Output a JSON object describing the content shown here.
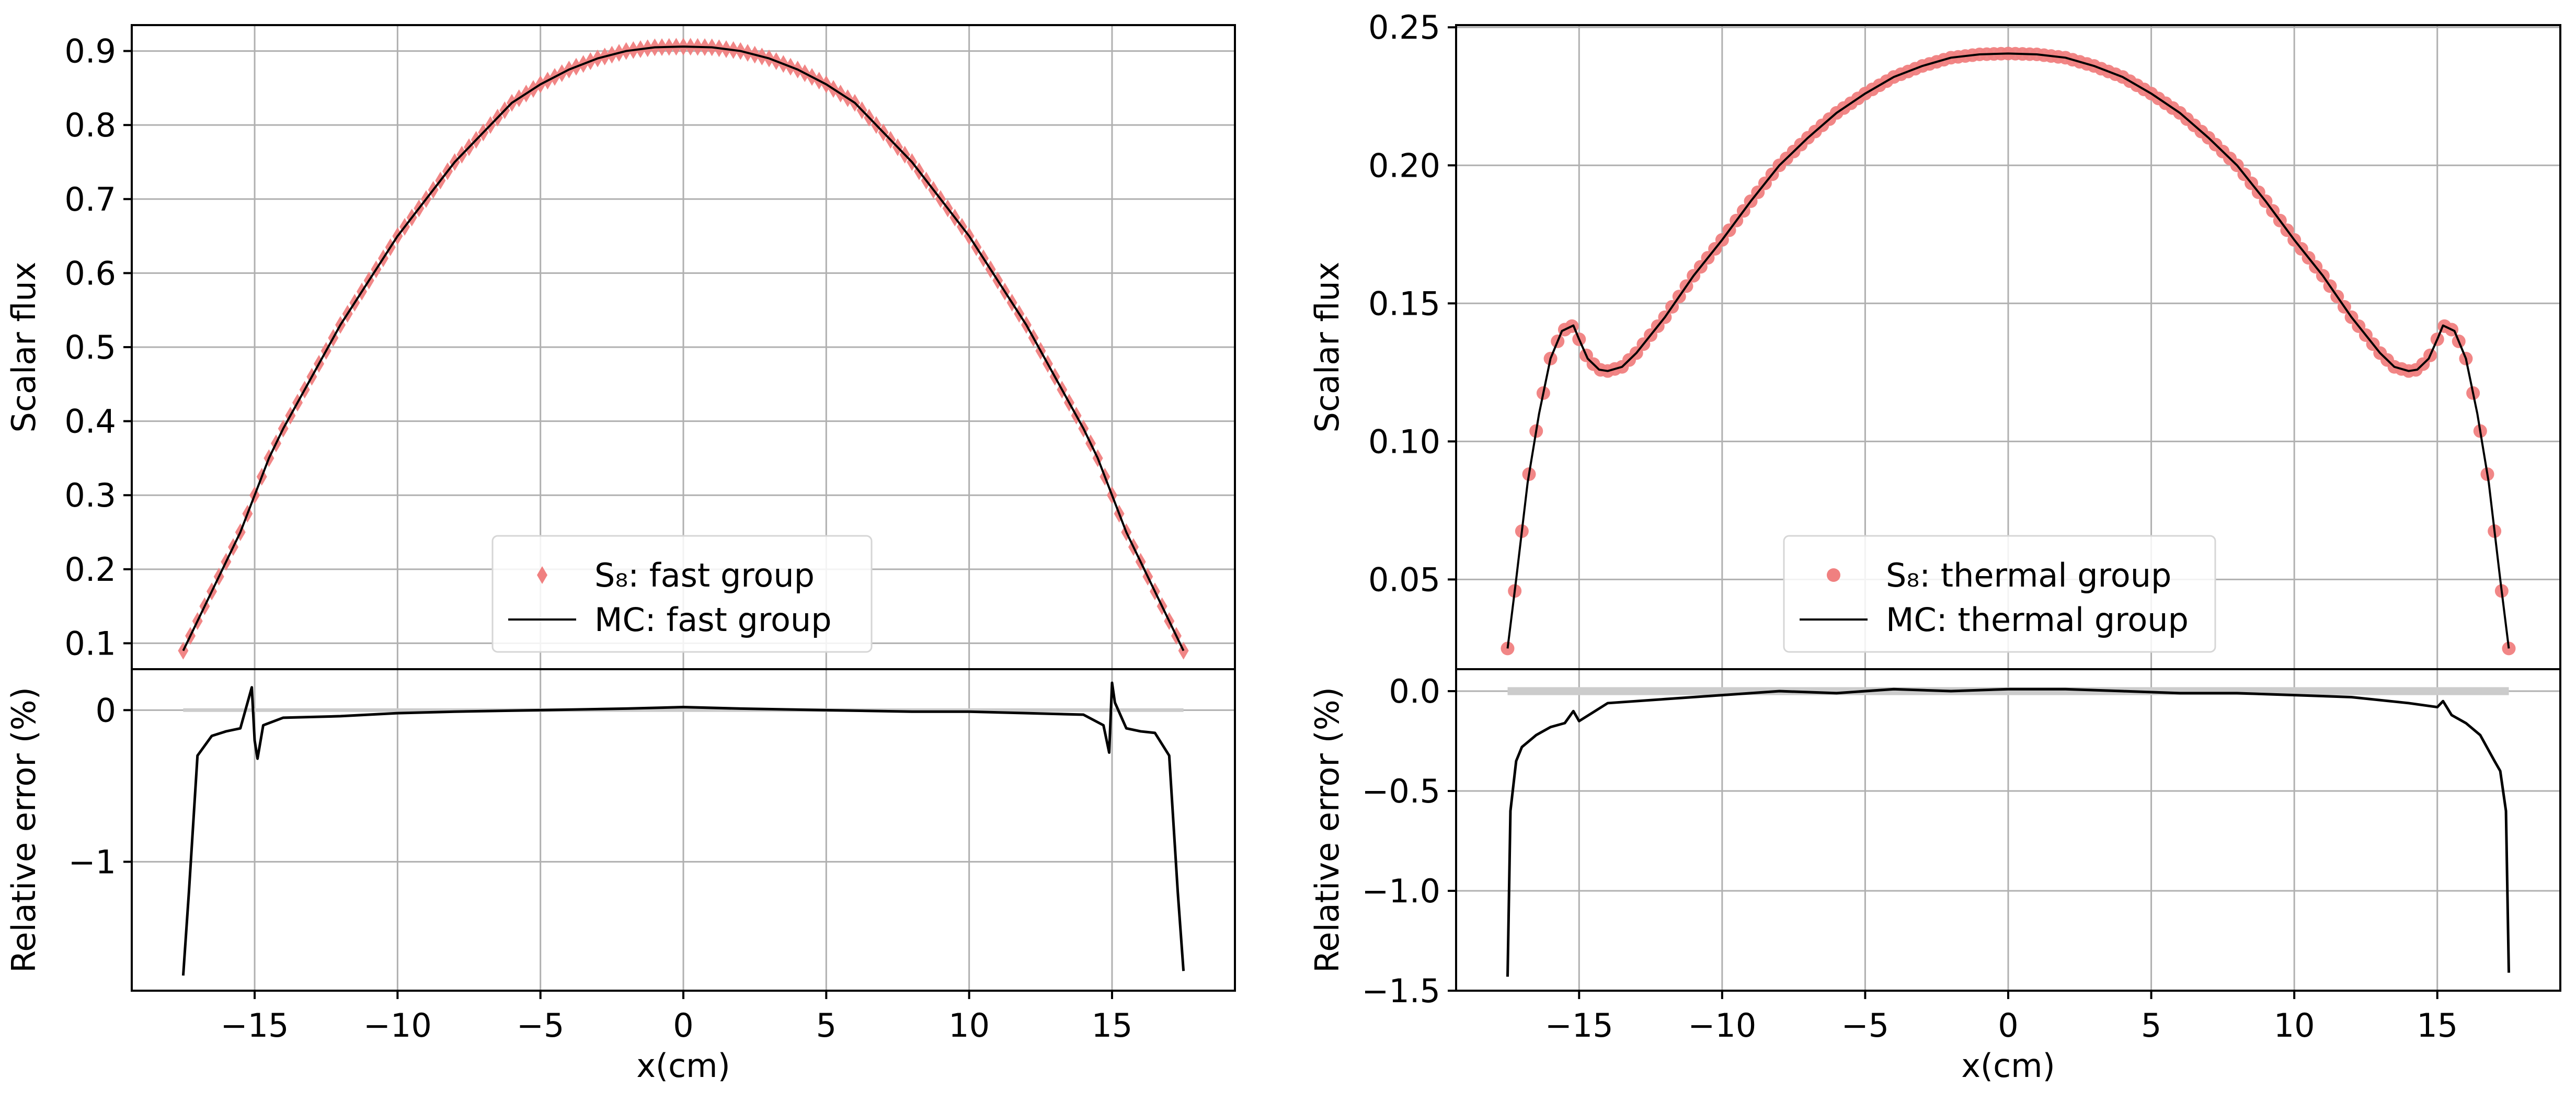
{
  "figure": {
    "left_panel": {
      "top": {
        "ylabel": "Scalar flux",
        "ylim": [
          0.065,
          0.935
        ],
        "yticks": [
          0.1,
          0.2,
          0.3,
          0.4,
          0.5,
          0.6,
          0.7,
          0.8,
          0.9
        ],
        "ytick_labels": [
          "0.1",
          "0.2",
          "0.3",
          "0.4",
          "0.5",
          "0.6",
          "0.7",
          "0.8",
          "0.9"
        ],
        "legend": [
          "S₈: fast group",
          "MC: fast group"
        ]
      },
      "bottom": {
        "ylabel": "Relative error (%)",
        "ylim": [
          -1.85,
          0.27
        ],
        "yticks": [
          0,
          -1
        ],
        "ytick_labels": [
          "0",
          "−1"
        ]
      },
      "xlabel": "x(cm)"
    },
    "right_panel": {
      "top": {
        "ylabel": "Scalar flux",
        "ylim": [
          0.0175,
          0.2508
        ],
        "yticks": [
          0.05,
          0.1,
          0.15,
          0.2,
          0.25
        ],
        "ytick_labels": [
          "0.05",
          "0.10",
          "0.15",
          "0.20",
          "0.25"
        ],
        "legend": [
          "S₈: thermal group",
          "MC: thermal group"
        ]
      },
      "bottom": {
        "ylabel": "Relative error (%)",
        "ylim": [
          -1.5,
          0.11
        ],
        "yticks": [
          0,
          -0.5,
          -1.0,
          -1.5
        ],
        "ytick_labels": [
          "0.0",
          "−0.5",
          "−1.0",
          "−1.5"
        ]
      },
      "xlabel": "x(cm)"
    },
    "xlim": [
      -19.3,
      19.3
    ],
    "xticks": [
      -15,
      -10,
      -5,
      0,
      5,
      10,
      15
    ],
    "xtick_labels": [
      "−15",
      "−10",
      "−5",
      "0",
      "5",
      "10",
      "15"
    ],
    "grid": true,
    "legend_position": "lower center",
    "colors": {
      "s8_marker": "#f08080",
      "mc_line": "#000000",
      "grid": "#b0b0b0",
      "zero_band": "#cccccc"
    }
  },
  "chart_data": [
    {
      "type": "line",
      "title": "",
      "xlabel": "",
      "ylabel": "Scalar flux",
      "xlim": [
        -19.3,
        19.3
      ],
      "ylim": [
        0.065,
        0.935
      ],
      "x": [
        -17.5,
        -17.0,
        -16.5,
        -16.0,
        -15.5,
        -15.0,
        -14.5,
        -14.0,
        -13.0,
        -12.0,
        -11.0,
        -10.0,
        -9.0,
        -8.0,
        -7.0,
        -6.0,
        -5.0,
        -4.0,
        -3.0,
        -2.0,
        -1.0,
        0.0,
        1.0,
        2.0,
        3.0,
        4.0,
        5.0,
        6.0,
        7.0,
        8.0,
        9.0,
        10.0,
        11.0,
        12.0,
        13.0,
        14.0,
        14.5,
        15.0,
        15.5,
        16.0,
        16.5,
        17.0,
        17.5
      ],
      "series": [
        {
          "name": "S₈: fast group",
          "marker": "diamond",
          "values": [
            0.09,
            0.13,
            0.17,
            0.21,
            0.25,
            0.3,
            0.35,
            0.39,
            0.46,
            0.53,
            0.59,
            0.65,
            0.7,
            0.75,
            0.79,
            0.83,
            0.855,
            0.875,
            0.89,
            0.9,
            0.905,
            0.906,
            0.905,
            0.9,
            0.89,
            0.875,
            0.855,
            0.83,
            0.79,
            0.75,
            0.7,
            0.65,
            0.59,
            0.53,
            0.46,
            0.39,
            0.35,
            0.3,
            0.25,
            0.21,
            0.17,
            0.13,
            0.09
          ]
        },
        {
          "name": "MC: fast group",
          "marker": "none",
          "values": [
            0.09,
            0.13,
            0.17,
            0.21,
            0.25,
            0.3,
            0.35,
            0.39,
            0.46,
            0.53,
            0.59,
            0.65,
            0.7,
            0.75,
            0.79,
            0.83,
            0.855,
            0.875,
            0.89,
            0.9,
            0.905,
            0.906,
            0.905,
            0.9,
            0.89,
            0.875,
            0.855,
            0.83,
            0.79,
            0.75,
            0.7,
            0.65,
            0.59,
            0.53,
            0.46,
            0.39,
            0.35,
            0.3,
            0.25,
            0.21,
            0.17,
            0.13,
            0.09
          ]
        }
      ]
    },
    {
      "type": "line",
      "title": "",
      "xlabel": "x(cm)",
      "ylabel": "Relative error (%)",
      "xlim": [
        -19.3,
        19.3
      ],
      "ylim": [
        -1.85,
        0.27
      ],
      "x": [
        -17.5,
        -17.3,
        -17.0,
        -16.5,
        -16.0,
        -15.5,
        -15.1,
        -15.0,
        -14.9,
        -14.7,
        -14.0,
        -12.0,
        -10.0,
        -8.0,
        -5.0,
        -2.0,
        0.0,
        2.0,
        5.0,
        8.0,
        10.0,
        12.0,
        14.0,
        14.7,
        14.9,
        15.0,
        15.1,
        15.5,
        16.0,
        16.5,
        17.0,
        17.3,
        17.5
      ],
      "series": [
        {
          "name": "",
          "values": [
            -1.75,
            -1.2,
            -0.3,
            -0.17,
            -0.14,
            -0.12,
            0.15,
            -0.2,
            -0.32,
            -0.1,
            -0.05,
            -0.04,
            -0.02,
            -0.01,
            0.0,
            0.01,
            0.02,
            0.01,
            0.0,
            -0.01,
            -0.01,
            -0.02,
            -0.03,
            -0.1,
            -0.28,
            0.18,
            0.05,
            -0.12,
            -0.14,
            -0.15,
            -0.3,
            -1.2,
            -1.72
          ]
        }
      ]
    },
    {
      "type": "scatter",
      "title": "",
      "xlabel": "",
      "ylabel": "Scalar flux",
      "xlim": [
        -19.3,
        19.3
      ],
      "ylim": [
        0.0175,
        0.2508
      ],
      "x": [
        -17.5,
        -17.2,
        -16.8,
        -16.4,
        -16.0,
        -15.6,
        -15.2,
        -15.0,
        -14.7,
        -14.3,
        -14.0,
        -13.5,
        -13.0,
        -12.0,
        -11.0,
        -10.0,
        -9.0,
        -8.0,
        -7.0,
        -6.0,
        -5.0,
        -4.0,
        -3.0,
        -2.0,
        -1.0,
        0.0,
        1.0,
        2.0,
        3.0,
        4.0,
        5.0,
        6.0,
        7.0,
        8.0,
        9.0,
        10.0,
        11.0,
        12.0,
        13.0,
        13.5,
        14.0,
        14.3,
        14.7,
        15.0,
        15.2,
        15.6,
        16.0,
        16.4,
        16.8,
        17.2,
        17.5
      ],
      "series": [
        {
          "name": "S₈: thermal group",
          "marker": "circle",
          "values": [
            0.025,
            0.05,
            0.085,
            0.11,
            0.13,
            0.14,
            0.142,
            0.137,
            0.13,
            0.126,
            0.1255,
            0.127,
            0.132,
            0.145,
            0.16,
            0.173,
            0.187,
            0.2,
            0.21,
            0.219,
            0.226,
            0.232,
            0.236,
            0.239,
            0.2402,
            0.2405,
            0.2402,
            0.239,
            0.236,
            0.232,
            0.226,
            0.219,
            0.21,
            0.2,
            0.187,
            0.173,
            0.16,
            0.145,
            0.132,
            0.127,
            0.1255,
            0.126,
            0.13,
            0.137,
            0.142,
            0.14,
            0.13,
            0.11,
            0.085,
            0.05,
            0.025
          ]
        },
        {
          "name": "MC: thermal group",
          "marker": "none",
          "values": [
            0.025,
            0.05,
            0.085,
            0.11,
            0.13,
            0.14,
            0.142,
            0.137,
            0.13,
            0.126,
            0.1255,
            0.127,
            0.132,
            0.145,
            0.16,
            0.173,
            0.187,
            0.2,
            0.21,
            0.219,
            0.226,
            0.232,
            0.236,
            0.239,
            0.2402,
            0.2405,
            0.2402,
            0.239,
            0.236,
            0.232,
            0.226,
            0.219,
            0.21,
            0.2,
            0.187,
            0.173,
            0.16,
            0.145,
            0.132,
            0.127,
            0.1255,
            0.126,
            0.13,
            0.137,
            0.142,
            0.14,
            0.13,
            0.11,
            0.085,
            0.05,
            0.025
          ]
        }
      ]
    },
    {
      "type": "line",
      "title": "",
      "xlabel": "x(cm)",
      "ylabel": "Relative error (%)",
      "xlim": [
        -19.3,
        19.3
      ],
      "ylim": [
        -1.5,
        0.11
      ],
      "x": [
        -17.5,
        -17.4,
        -17.2,
        -17.0,
        -16.5,
        -16.0,
        -15.5,
        -15.2,
        -15.0,
        -14.0,
        -12.0,
        -10.0,
        -8.0,
        -6.0,
        -4.0,
        -2.0,
        0.0,
        2.0,
        4.0,
        6.0,
        8.0,
        10.0,
        12.0,
        14.0,
        15.0,
        15.2,
        15.5,
        16.0,
        16.5,
        17.0,
        17.2,
        17.4,
        17.5
      ],
      "series": [
        {
          "name": "",
          "values": [
            -1.43,
            -0.6,
            -0.35,
            -0.28,
            -0.22,
            -0.18,
            -0.16,
            -0.1,
            -0.15,
            -0.06,
            -0.04,
            -0.02,
            0.0,
            -0.01,
            0.01,
            0.0,
            0.01,
            0.01,
            0.0,
            -0.01,
            -0.01,
            -0.02,
            -0.03,
            -0.06,
            -0.08,
            -0.05,
            -0.12,
            -0.16,
            -0.22,
            -0.35,
            -0.4,
            -0.6,
            -1.41
          ]
        }
      ]
    }
  ]
}
